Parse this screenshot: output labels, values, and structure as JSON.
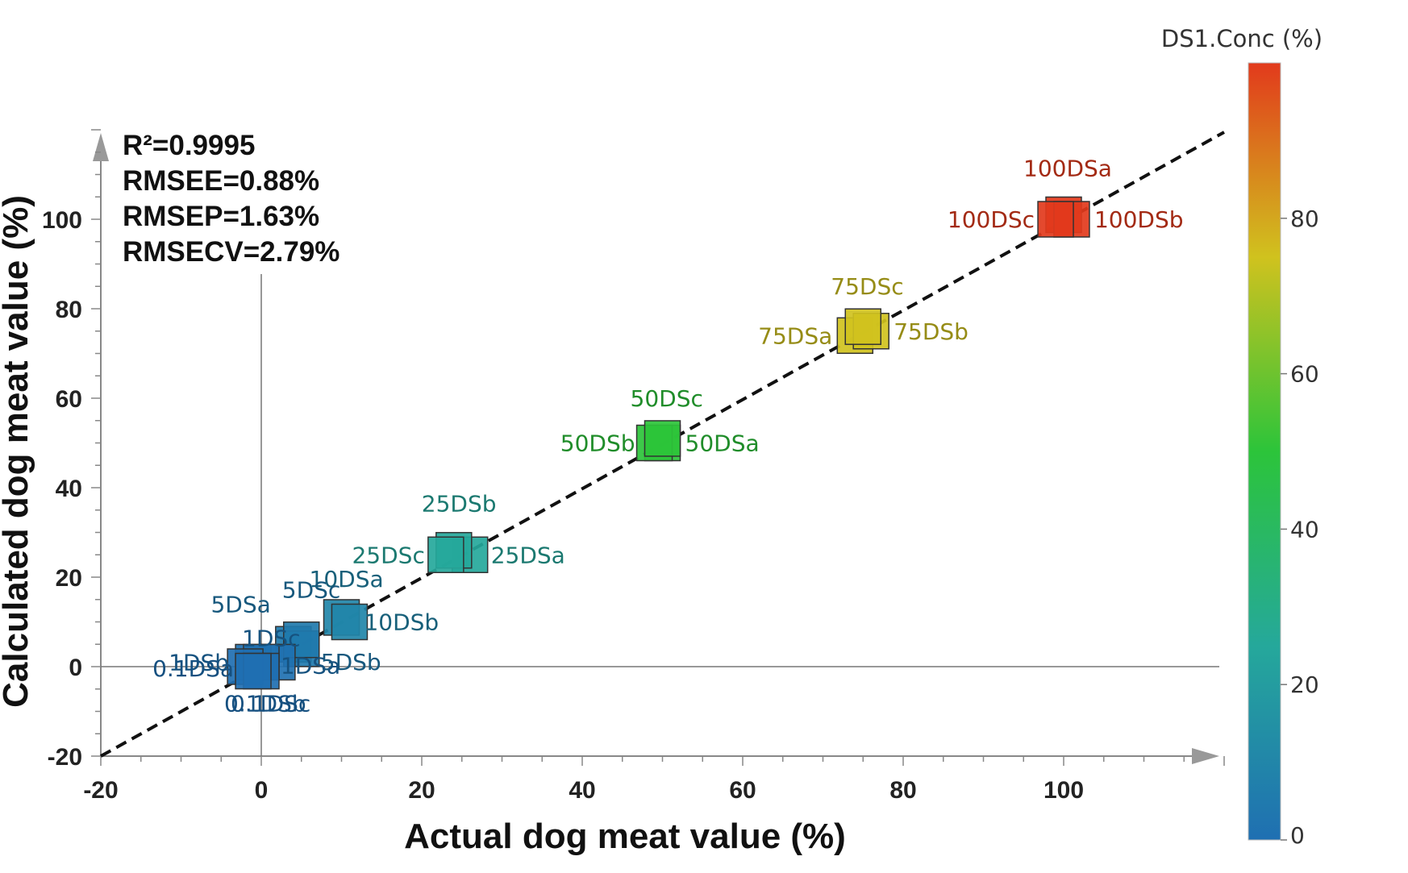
{
  "chart_data": {
    "type": "scatter",
    "xlabel": "Actual dog meat value (%)",
    "ylabel": "Calculated dog meat value (%)",
    "xlim": [
      -20,
      120
    ],
    "ylim": [
      -20,
      120
    ],
    "x_ticks": [
      -20,
      0,
      20,
      40,
      60,
      80,
      100
    ],
    "y_ticks": [
      -20,
      0,
      20,
      40,
      60,
      80,
      100
    ],
    "annotations": [
      "R²=0.9995",
      "RMSEE=0.88%",
      "RMSEP=1.63%",
      "RMSECV=2.79%"
    ],
    "colorbar": {
      "title": "DS1.Conc (%)",
      "range": [
        0,
        100
      ],
      "ticks": [
        0,
        20,
        40,
        60,
        80
      ],
      "colors": [
        "#1f6fb2",
        "#25a89b",
        "#2cc43a",
        "#d0c21e",
        "#e23a1c"
      ]
    },
    "reference_line": {
      "style": "dashed",
      "from": [
        -20,
        -20
      ],
      "to": [
        120,
        120
      ]
    },
    "points": [
      {
        "label": "100DSa",
        "x": 100,
        "y": 101,
        "conc": 100
      },
      {
        "label": "100DSb",
        "x": 101,
        "y": 100,
        "conc": 100
      },
      {
        "label": "100DSc",
        "x": 99,
        "y": 100,
        "conc": 100
      },
      {
        "label": "75DSa",
        "x": 74,
        "y": 74,
        "conc": 75
      },
      {
        "label": "75DSb",
        "x": 76,
        "y": 75,
        "conc": 75
      },
      {
        "label": "75DSc",
        "x": 75,
        "y": 76,
        "conc": 75
      },
      {
        "label": "50DSa",
        "x": 50,
        "y": 50,
        "conc": 50
      },
      {
        "label": "50DSb",
        "x": 49,
        "y": 50,
        "conc": 50
      },
      {
        "label": "50DSc",
        "x": 50,
        "y": 51,
        "conc": 50
      },
      {
        "label": "25DSa",
        "x": 26,
        "y": 25,
        "conc": 25
      },
      {
        "label": "25DSb",
        "x": 24,
        "y": 26,
        "conc": 25
      },
      {
        "label": "25DSc",
        "x": 23,
        "y": 25,
        "conc": 25
      },
      {
        "label": "10DSa",
        "x": 10,
        "y": 11,
        "conc": 10
      },
      {
        "label": "10DSb",
        "x": 11,
        "y": 10,
        "conc": 10
      },
      {
        "label": "5DSa",
        "x": 4,
        "y": 5,
        "conc": 5
      },
      {
        "label": "5DSb",
        "x": 5,
        "y": 4,
        "conc": 5
      },
      {
        "label": "5DSc",
        "x": 5,
        "y": 6,
        "conc": 5
      },
      {
        "label": "1DSa",
        "x": 2,
        "y": 1,
        "conc": 1
      },
      {
        "label": "1DSb",
        "x": -1,
        "y": 1,
        "conc": 1
      },
      {
        "label": "1DSc",
        "x": 0,
        "y": 1,
        "conc": 1
      },
      {
        "label": "0.1DSa",
        "x": -2,
        "y": 0,
        "conc": 0.1
      },
      {
        "label": "0.1DSb",
        "x": 0,
        "y": -1,
        "conc": 0.1
      },
      {
        "label": "0.1DSc",
        "x": -1,
        "y": -1,
        "conc": 0.1
      }
    ]
  }
}
